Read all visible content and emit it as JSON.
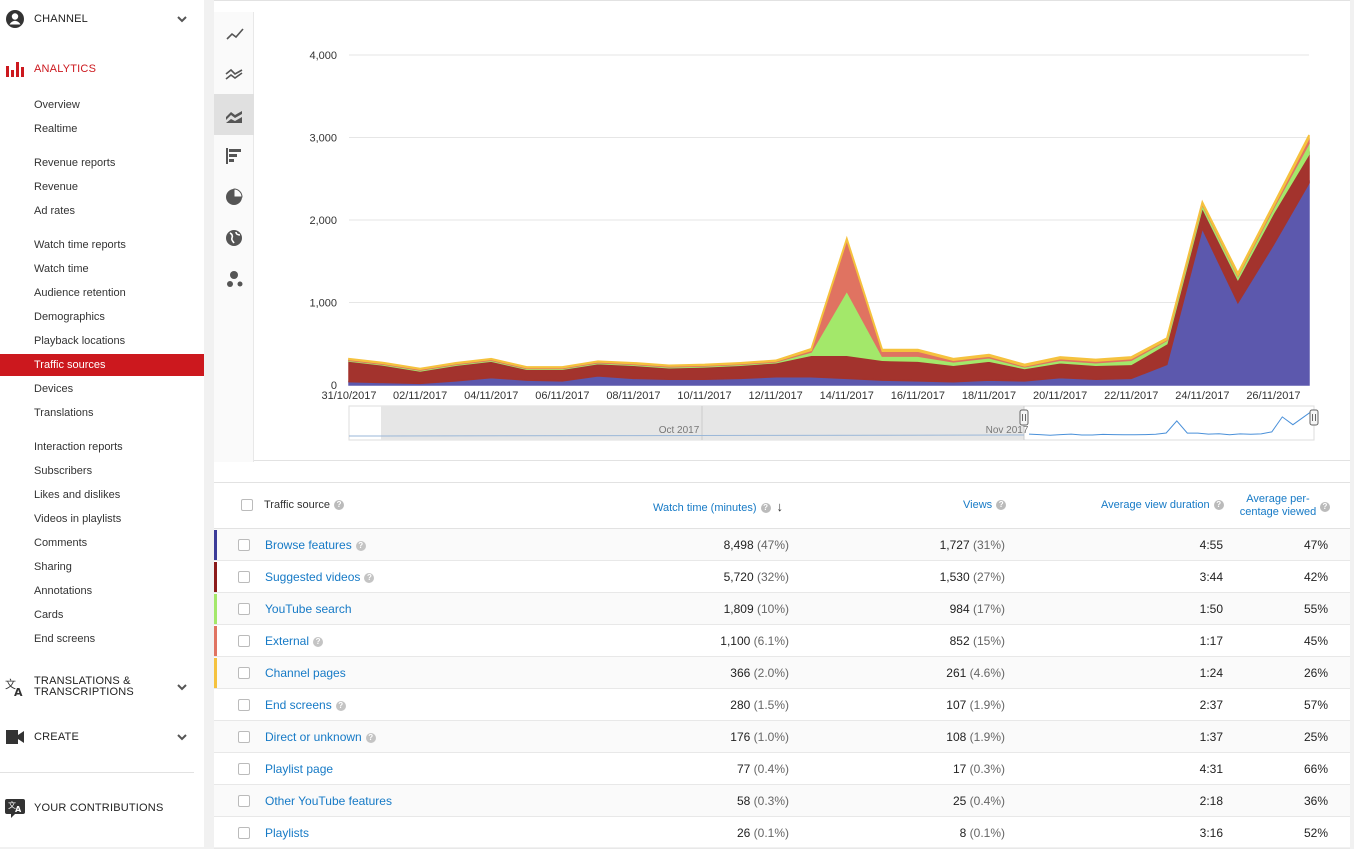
{
  "sidebar": {
    "channel": {
      "label": "CHANNEL",
      "icon": "account-circle-icon"
    },
    "analytics": {
      "label": "ANALYTICS",
      "icon": "bar-chart-icon"
    },
    "groups": [
      [
        "Overview",
        "Realtime"
      ],
      [
        "Revenue reports",
        "Revenue",
        "Ad rates"
      ],
      [
        "Watch time reports",
        "Watch time",
        "Audience retention",
        "Demographics",
        "Playback locations",
        "Traffic sources",
        "Devices",
        "Translations"
      ],
      [
        "Interaction reports",
        "Subscribers",
        "Likes and dislikes",
        "Videos in playlists",
        "Comments",
        "Sharing",
        "Annotations",
        "Cards",
        "End screens"
      ]
    ],
    "active_item": "Traffic sources",
    "translations": {
      "label_line1": "TRANSLATIONS &",
      "label_line2": "TRANSCRIPTIONS",
      "icon": "translate-icon"
    },
    "create": {
      "label": "CREATE",
      "icon": "video-camera-icon"
    },
    "contributions": {
      "label": "YOUR CONTRIBUTIONS",
      "icon": "translate-icon"
    }
  },
  "toolbar": [
    "line-chart-icon",
    "multi-line-chart-icon",
    "stacked-area-chart-icon",
    "bar-chart-horizontal-icon",
    "pie-chart-icon",
    "globe-icon",
    "bubble-chart-icon"
  ],
  "toolbar_active": 2,
  "chart_data": {
    "type": "area",
    "stacked": true,
    "x": [
      "31/10/2017",
      "01/11/2017",
      "02/11/2017",
      "03/11/2017",
      "04/11/2017",
      "05/11/2017",
      "06/11/2017",
      "07/11/2017",
      "08/11/2017",
      "09/11/2017",
      "10/11/2017",
      "11/11/2017",
      "12/11/2017",
      "13/11/2017",
      "14/11/2017",
      "15/11/2017",
      "16/11/2017",
      "17/11/2017",
      "18/11/2017",
      "19/11/2017",
      "20/11/2017",
      "21/11/2017",
      "22/11/2017",
      "23/11/2017",
      "24/11/2017",
      "25/11/2017",
      "26/11/2017",
      "27/11/2017"
    ],
    "xtick_labels": [
      "31/10/2017",
      "02/11/2017",
      "04/11/2017",
      "06/11/2017",
      "08/11/2017",
      "10/11/2017",
      "12/11/2017",
      "14/11/2017",
      "16/11/2017",
      "18/11/2017",
      "20/11/2017",
      "22/11/2017",
      "24/11/2017",
      "26/11/2017"
    ],
    "yticks": [
      "0",
      "1,000",
      "2,000",
      "3,000",
      "4,000"
    ],
    "ylim": [
      0,
      4000
    ],
    "grid": true,
    "series": [
      {
        "color": "#5c58ad",
        "values": [
          40,
          30,
          20,
          50,
          90,
          60,
          50,
          110,
          80,
          70,
          70,
          80,
          100,
          100,
          80,
          60,
          50,
          40,
          60,
          50,
          90,
          70,
          80,
          250,
          1900,
          1000,
          1700,
          2450
        ]
      },
      {
        "color": "#a3332d",
        "values": [
          250,
          210,
          150,
          190,
          200,
          130,
          140,
          150,
          160,
          140,
          150,
          160,
          170,
          260,
          280,
          240,
          240,
          200,
          230,
          150,
          180,
          170,
          170,
          250,
          250,
          280,
          380,
          350
        ]
      },
      {
        "color": "#a3e86a",
        "values": [
          10,
          10,
          10,
          10,
          10,
          10,
          10,
          10,
          10,
          10,
          10,
          10,
          10,
          40,
          780,
          50,
          60,
          40,
          40,
          20,
          30,
          30,
          50,
          40,
          40,
          40,
          60,
          130
        ]
      },
      {
        "color": "#e07361",
        "values": [
          10,
          10,
          10,
          10,
          10,
          10,
          10,
          10,
          10,
          10,
          10,
          10,
          10,
          20,
          620,
          60,
          60,
          20,
          20,
          10,
          20,
          20,
          20,
          10,
          10,
          10,
          20,
          60
        ]
      },
      {
        "color": "#f5c23e",
        "values": [
          10,
          10,
          10,
          10,
          10,
          10,
          10,
          10,
          10,
          10,
          10,
          10,
          10,
          20,
          20,
          20,
          20,
          20,
          20,
          20,
          20,
          20,
          20,
          20,
          20,
          30,
          30,
          40
        ]
      }
    ],
    "navigator": {
      "labels": [
        "Oct 2017",
        "Nov 2017"
      ]
    }
  },
  "table": {
    "headers": {
      "source": "Traffic source",
      "watch_time": "Watch time (minutes)",
      "views": "Views",
      "avg_duration": "Average view duration",
      "avg_pct_line1": "Average per-",
      "avg_pct_line2": "centage viewed"
    },
    "rows": [
      {
        "source": "Browse features",
        "help": true,
        "color": "#3b3b98",
        "watch": "8,498",
        "watch_pct": "(47%)",
        "views": "1,727",
        "views_pct": "(31%)",
        "duration": "4:55",
        "pct": "47%"
      },
      {
        "source": "Suggested videos",
        "help": true,
        "color": "#8b1a1a",
        "watch": "5,720",
        "watch_pct": "(32%)",
        "views": "1,530",
        "views_pct": "(27%)",
        "duration": "3:44",
        "pct": "42%"
      },
      {
        "source": "YouTube search",
        "help": false,
        "color": "#a3e86a",
        "watch": "1,809",
        "watch_pct": "(10%)",
        "views": "984",
        "views_pct": "(17%)",
        "duration": "1:50",
        "pct": "55%"
      },
      {
        "source": "External",
        "help": true,
        "color": "#e07361",
        "watch": "1,100",
        "watch_pct": "(6.1%)",
        "views": "852",
        "views_pct": "(15%)",
        "duration": "1:17",
        "pct": "45%"
      },
      {
        "source": "Channel pages",
        "help": false,
        "color": "#f5c23e",
        "watch": "366",
        "watch_pct": "(2.0%)",
        "views": "261",
        "views_pct": "(4.6%)",
        "duration": "1:24",
        "pct": "26%"
      },
      {
        "source": "End screens",
        "help": true,
        "color": "",
        "watch": "280",
        "watch_pct": "(1.5%)",
        "views": "107",
        "views_pct": "(1.9%)",
        "duration": "2:37",
        "pct": "57%"
      },
      {
        "source": "Direct or unknown",
        "help": true,
        "color": "",
        "watch": "176",
        "watch_pct": "(1.0%)",
        "views": "108",
        "views_pct": "(1.9%)",
        "duration": "1:37",
        "pct": "25%"
      },
      {
        "source": "Playlist page",
        "help": false,
        "color": "",
        "watch": "77",
        "watch_pct": "(0.4%)",
        "views": "17",
        "views_pct": "(0.3%)",
        "duration": "4:31",
        "pct": "66%"
      },
      {
        "source": "Other YouTube features",
        "help": false,
        "color": "",
        "watch": "58",
        "watch_pct": "(0.3%)",
        "views": "25",
        "views_pct": "(0.4%)",
        "duration": "2:18",
        "pct": "36%"
      },
      {
        "source": "Playlists",
        "help": false,
        "color": "",
        "watch": "26",
        "watch_pct": "(0.1%)",
        "views": "8",
        "views_pct": "(0.1%)",
        "duration": "3:16",
        "pct": "52%"
      }
    ]
  }
}
